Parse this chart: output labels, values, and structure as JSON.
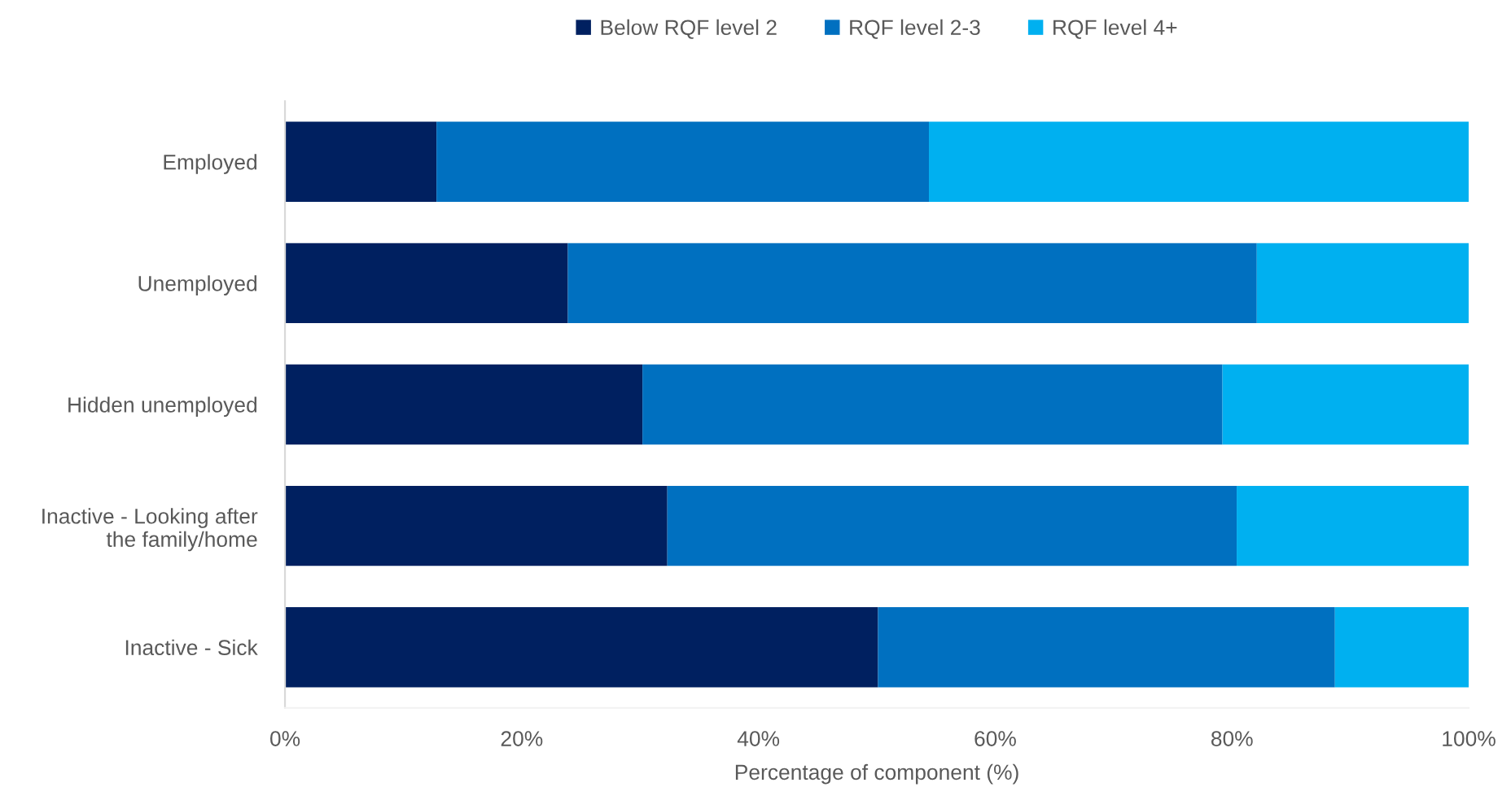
{
  "chart_data": {
    "type": "bar",
    "orientation": "horizontal",
    "stacked": true,
    "categories": [
      "Employed",
      "Unemployed",
      "Hidden unemployed",
      "Inactive - Looking after\nthe family/home",
      "Inactive - Sick"
    ],
    "series": [
      {
        "name": "Below RQF level 2",
        "color": "#002060",
        "values": [
          12.8,
          23.9,
          30.2,
          32.3,
          50.1
        ]
      },
      {
        "name": "RQF level 2-3",
        "color": "#0070c0",
        "values": [
          41.6,
          58.2,
          49.0,
          48.1,
          38.6
        ]
      },
      {
        "name": "RQF level 4+",
        "color": "#00b0f0",
        "values": [
          45.6,
          17.9,
          20.8,
          19.6,
          11.3
        ]
      }
    ],
    "xlim": [
      0,
      100
    ],
    "xticks": [
      {
        "value": 0,
        "label": "0%"
      },
      {
        "value": 20,
        "label": "20%"
      },
      {
        "value": 40,
        "label": "40%"
      },
      {
        "value": 60,
        "label": "60%"
      },
      {
        "value": 80,
        "label": "80%"
      },
      {
        "value": 100,
        "label": "100%"
      }
    ],
    "xlabel": "Percentage of component (%)",
    "legend": "top"
  }
}
